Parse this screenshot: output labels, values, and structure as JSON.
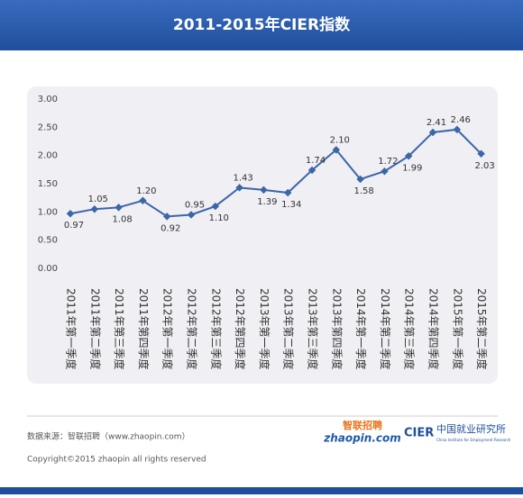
{
  "header": {
    "title": "2011-2015年CIER指数"
  },
  "chart_data": {
    "type": "line",
    "categories": [
      "2011年第一季度",
      "2011年第二季度",
      "2011年第三季度",
      "2011年第四季度",
      "2012年第一季度",
      "2012年第二季度",
      "2012年第三季度",
      "2012年第四季度",
      "2013年第一季度",
      "2013年第二季度",
      "2013年第三季度",
      "2013年第四季度",
      "2014年第一季度",
      "2014年第二季度",
      "2014年第三季度",
      "2014年第四季度",
      "2015年第一季度",
      "2015年第二季度"
    ],
    "values": [
      0.97,
      1.05,
      1.08,
      1.2,
      0.92,
      0.95,
      1.1,
      1.43,
      1.39,
      1.34,
      1.74,
      2.1,
      1.58,
      1.72,
      1.99,
      2.41,
      2.46,
      2.03
    ],
    "value_labels": [
      "0.97",
      "1.05",
      "1.08",
      "1.20",
      "0.92",
      "0.95",
      "1.10",
      "1.43",
      "1.39",
      "1.34",
      "1.74",
      "2.10",
      "1.58",
      "1.72",
      "1.99",
      "2.41",
      "2.46",
      "2.03"
    ],
    "color": "#3b66a8",
    "ylim": [
      0,
      3
    ],
    "yticks": [
      {
        "value": 0,
        "label": "0.00"
      },
      {
        "value": 0.5,
        "label": "0.50"
      },
      {
        "value": 1,
        "label": "1.00"
      },
      {
        "value": 1.5,
        "label": "1.50"
      },
      {
        "value": 2,
        "label": "2.00"
      },
      {
        "value": 2.5,
        "label": "2.50"
      },
      {
        "value": 3,
        "label": "3.00"
      }
    ],
    "grid": false
  },
  "footer": {
    "source": "数据来源：智联招聘（www.zhaopin.com）",
    "copyright": "Copyright©2015 zhaopin all rights reserved",
    "logo1_cn": "智联招聘",
    "logo1_en": "zhaopin.com",
    "logo2_abbr": "CIER",
    "logo2_cn": "中国就业研究所",
    "logo2_en": "China Institute for Employment Research"
  }
}
